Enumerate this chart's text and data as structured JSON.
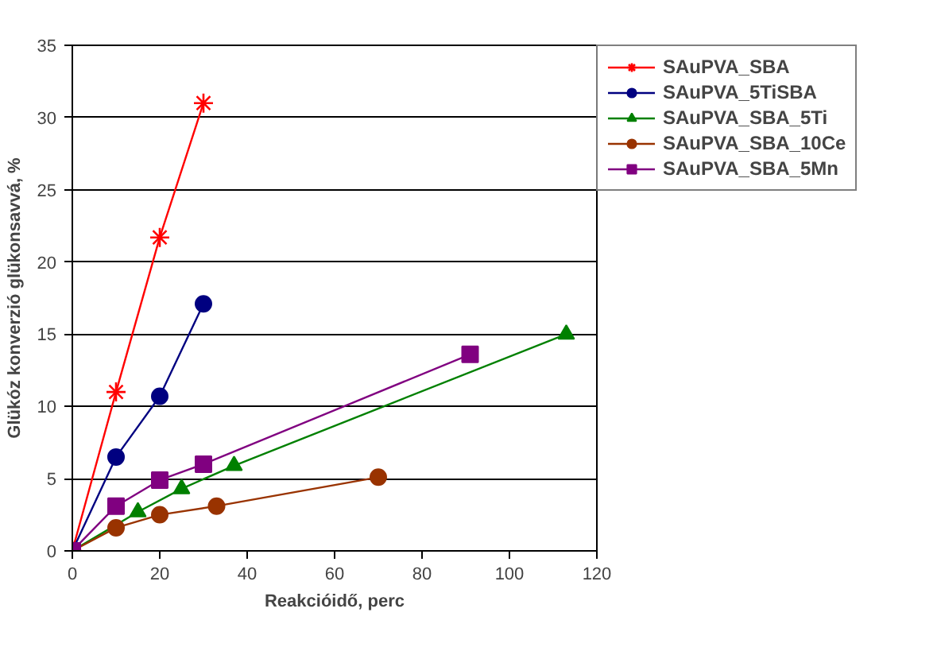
{
  "chart_data": {
    "type": "line",
    "xlabel": "Reakcióidő, perc",
    "ylabel": "Glükóz konverzió glükonsavvá, %",
    "xlim": [
      0,
      120
    ],
    "xticks": [
      0,
      20,
      40,
      60,
      80,
      100,
      120
    ],
    "ylim": [
      0,
      35
    ],
    "yticks": [
      0,
      5,
      10,
      15,
      20,
      25,
      30,
      35
    ],
    "grid": "y",
    "legend": "right",
    "line_style": "solid",
    "series": [
      {
        "name": "SAuPVA_SBA",
        "color": "#ff0000",
        "marker": "cross",
        "x": [
          0,
          10,
          20,
          30
        ],
        "values": [
          0,
          11,
          21.7,
          31
        ]
      },
      {
        "name": "SAuPVA_5TiSBA",
        "color": "#000080",
        "marker": "circle",
        "x": [
          0,
          10,
          20,
          30
        ],
        "values": [
          0,
          6.5,
          10.7,
          17.1
        ]
      },
      {
        "name": "SAuPVA_SBA_5Ti",
        "color": "#008000",
        "marker": "triangle",
        "x": [
          0,
          15,
          25,
          37,
          113
        ],
        "values": [
          0,
          2.7,
          4.3,
          5.9,
          15
        ]
      },
      {
        "name": "SAuPVA_SBA_10Ce",
        "color": "#993300",
        "marker": "circle",
        "x": [
          0,
          10,
          20,
          33,
          70
        ],
        "values": [
          0,
          1.6,
          2.5,
          3.1,
          5.1
        ]
      },
      {
        "name": "SAuPVA_SBA_5Mn",
        "color": "#800080",
        "marker": "square",
        "x": [
          0,
          10,
          20,
          30,
          91
        ],
        "values": [
          0,
          3.1,
          4.9,
          6.0,
          13.6
        ]
      }
    ]
  }
}
